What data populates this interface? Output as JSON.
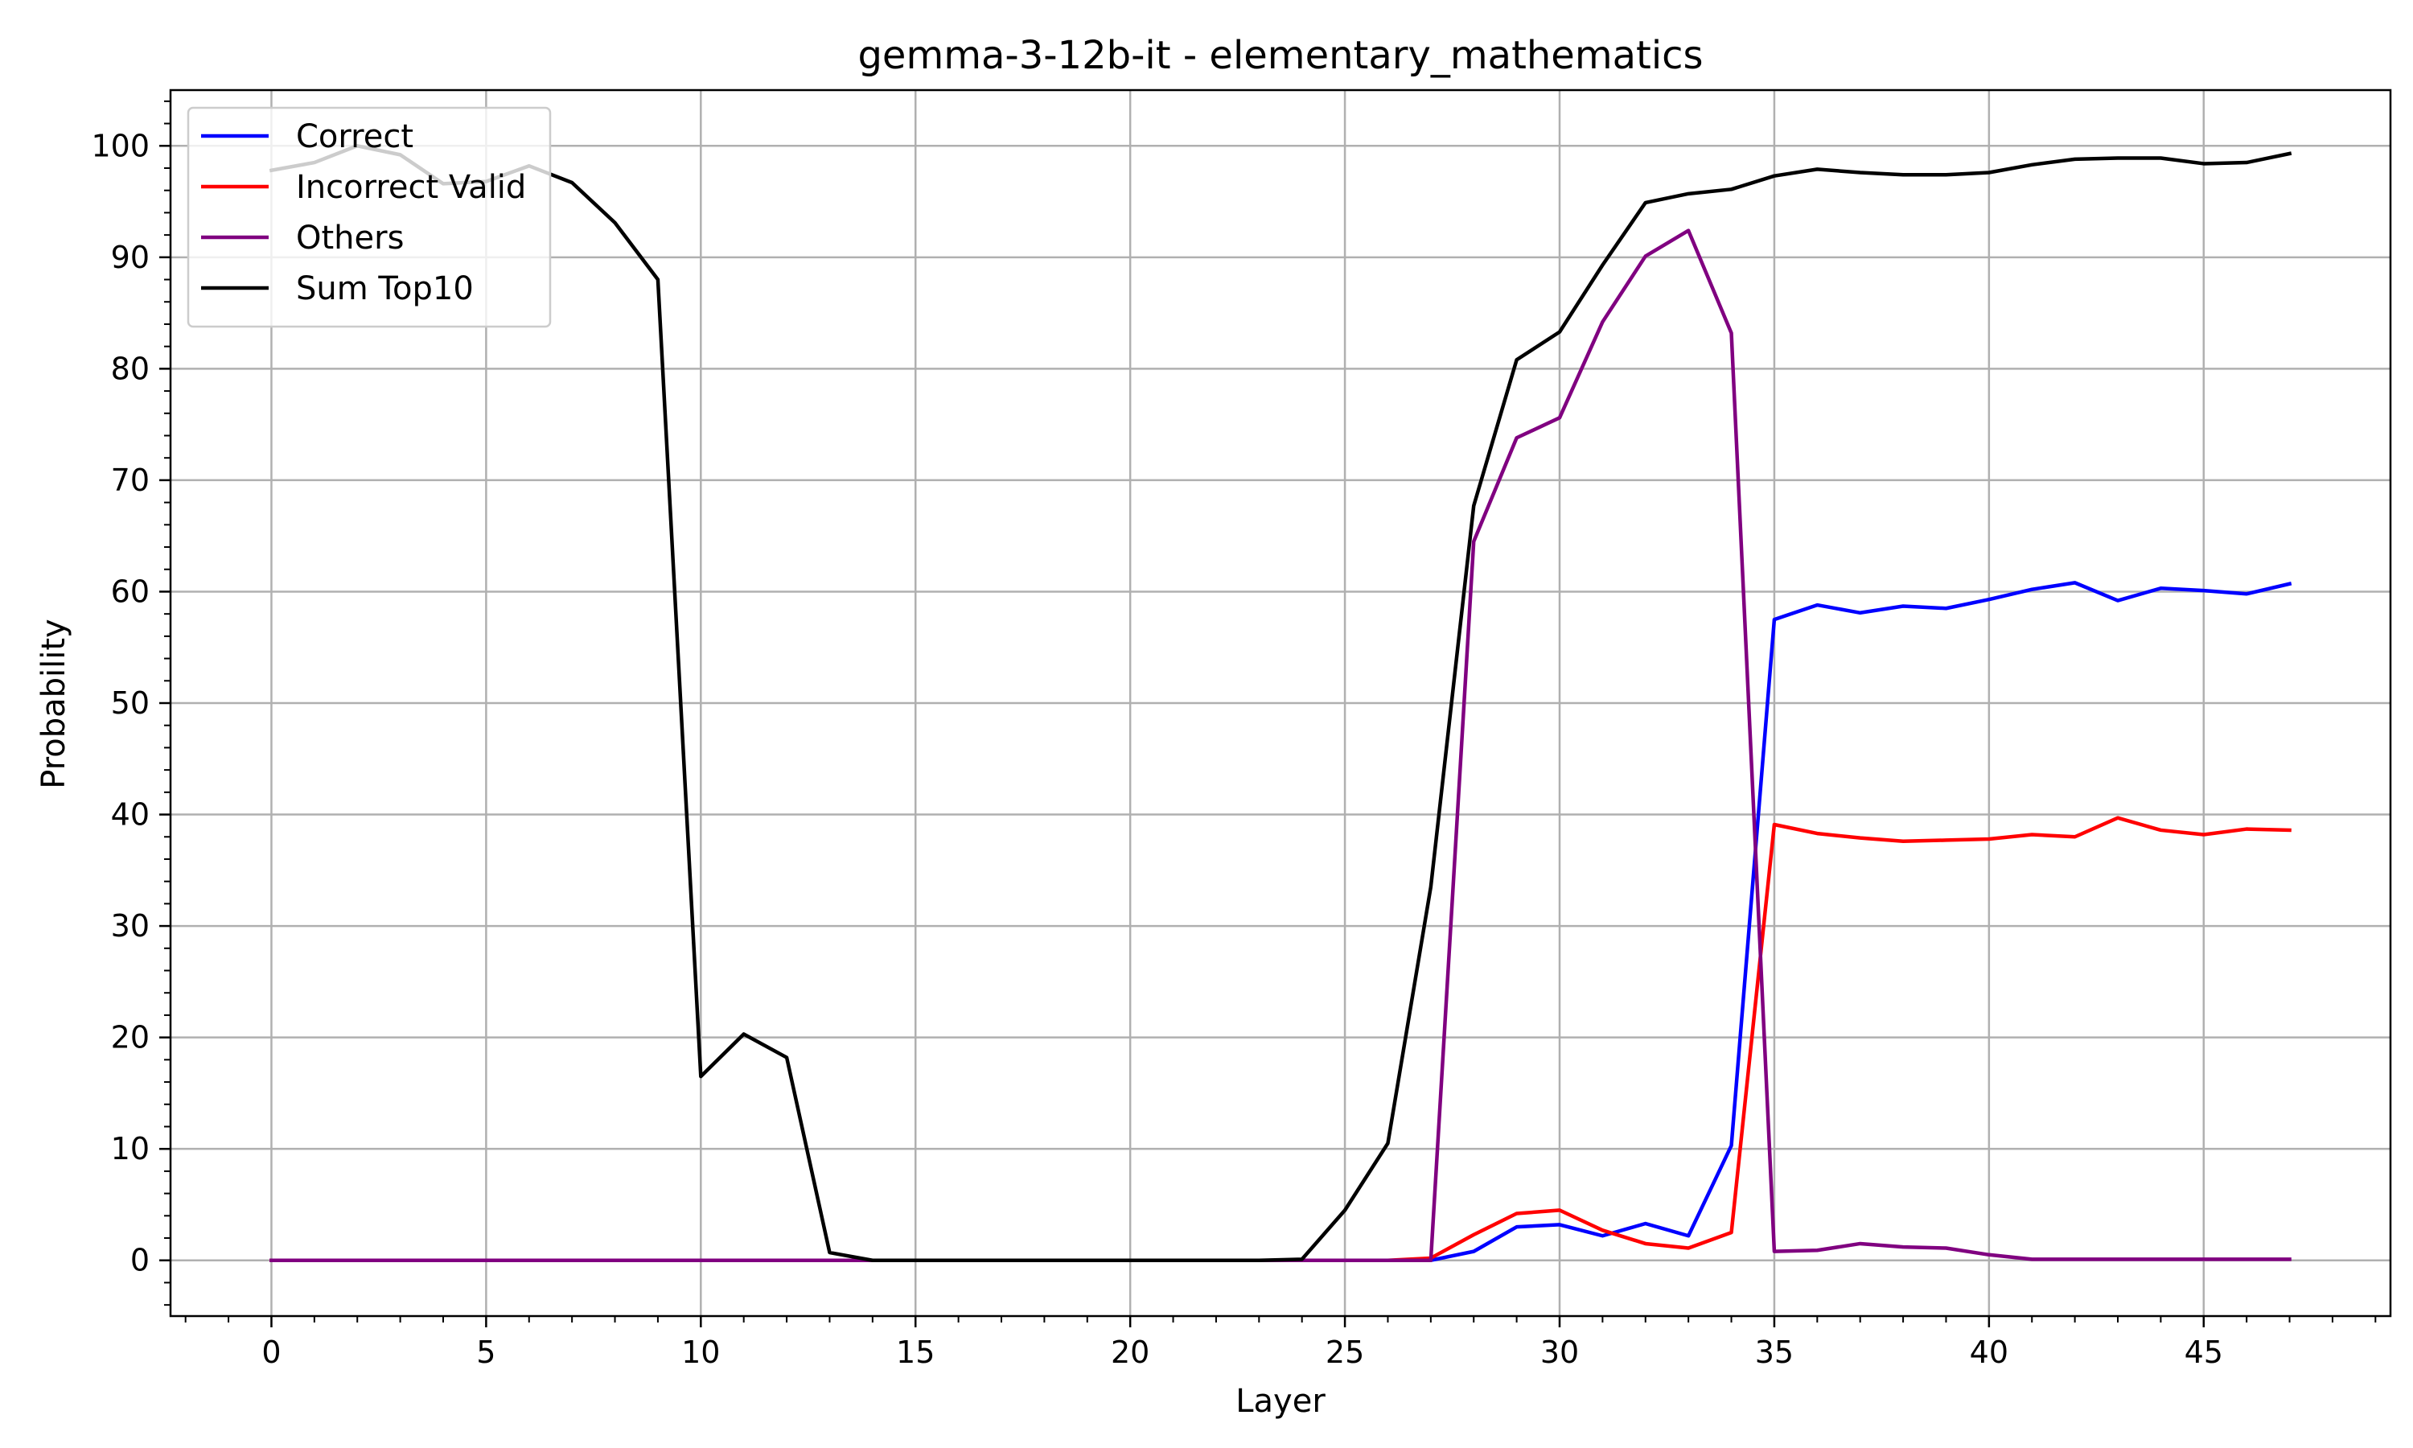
{
  "chart_data": {
    "type": "line",
    "title": "gemma-3-12b-it - elementary_mathematics",
    "xlabel": "Layer",
    "ylabel": "Probability",
    "xlim": [
      -2.35,
      49.35
    ],
    "ylim": [
      -5,
      105
    ],
    "xticks": [
      0,
      5,
      10,
      15,
      20,
      25,
      30,
      35,
      40,
      45
    ],
    "yticks": [
      0,
      10,
      20,
      30,
      40,
      50,
      60,
      70,
      80,
      90,
      100
    ],
    "x_minor_step": 1,
    "y_minor_step": 2,
    "grid": true,
    "legend_position": "upper-left",
    "x": [
      0,
      1,
      2,
      3,
      4,
      5,
      6,
      7,
      8,
      9,
      10,
      11,
      12,
      13,
      14,
      15,
      16,
      17,
      18,
      19,
      20,
      21,
      22,
      23,
      24,
      25,
      26,
      27,
      28,
      29,
      30,
      31,
      32,
      33,
      34,
      35,
      36,
      37,
      38,
      39,
      40,
      41,
      42,
      43,
      44,
      45,
      46,
      47
    ],
    "series": [
      {
        "name": "Correct",
        "color": "#0000ff",
        "values": [
          0,
          0,
          0,
          0,
          0,
          0,
          0,
          0,
          0,
          0,
          0,
          0,
          0,
          0,
          0,
          0,
          0,
          0,
          0,
          0,
          0,
          0,
          0,
          0,
          0,
          0,
          0,
          0,
          0.8,
          3.0,
          3.2,
          2.2,
          3.3,
          2.2,
          10.3,
          57.5,
          58.8,
          58.1,
          58.7,
          58.5,
          59.3,
          60.2,
          60.8,
          59.2,
          60.3,
          60.1,
          59.8,
          60.7
        ]
      },
      {
        "name": "Incorrect Valid",
        "color": "#ff0000",
        "values": [
          0,
          0,
          0,
          0,
          0,
          0,
          0,
          0,
          0,
          0,
          0,
          0,
          0,
          0,
          0,
          0,
          0,
          0,
          0,
          0,
          0,
          0,
          0,
          0,
          0,
          0,
          0,
          0.2,
          2.3,
          4.2,
          4.5,
          2.7,
          1.5,
          1.1,
          2.5,
          39.1,
          38.3,
          37.9,
          37.6,
          37.7,
          37.8,
          38.2,
          38.0,
          39.7,
          38.6,
          38.2,
          38.7,
          38.6
        ]
      },
      {
        "name": "Others",
        "color": "#800080",
        "values": [
          0,
          0,
          0,
          0,
          0,
          0,
          0,
          0,
          0,
          0,
          0,
          0,
          0,
          0,
          0,
          0,
          0,
          0,
          0,
          0,
          0,
          0,
          0,
          0,
          0,
          0,
          0,
          0,
          64.5,
          73.8,
          75.6,
          84.2,
          90.1,
          92.4,
          83.2,
          0.8,
          0.9,
          1.5,
          1.2,
          1.1,
          0.5,
          0.1,
          0.1,
          0.1,
          0.1,
          0.1,
          0.1,
          0.1
        ]
      },
      {
        "name": "Sum Top10",
        "color": "#000000",
        "values": [
          97.8,
          98.5,
          100.0,
          99.2,
          96.6,
          96.8,
          98.2,
          96.7,
          93.1,
          88.0,
          16.5,
          20.3,
          18.2,
          0.7,
          0,
          0,
          0,
          0,
          0,
          0,
          0,
          0,
          0,
          0,
          0.1,
          4.5,
          10.5,
          33.5,
          67.7,
          80.8,
          83.3,
          89.3,
          94.9,
          95.7,
          96.1,
          97.3,
          97.9,
          97.6,
          97.4,
          97.4,
          97.6,
          98.3,
          98.8,
          98.9,
          98.9,
          98.4,
          98.5,
          99.3
        ]
      }
    ]
  }
}
